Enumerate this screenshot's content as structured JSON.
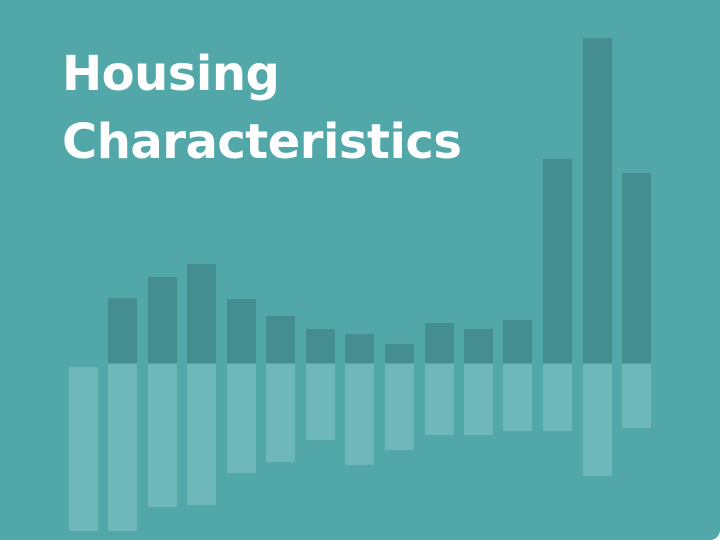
{
  "title": {
    "line1": "Housing",
    "line2": "Characteristics"
  },
  "colors": {
    "background": "#52a8a9",
    "upper_bars": "#448e8f",
    "lower_bars": "#6fb8b9",
    "title": "#ffffff"
  }
}
